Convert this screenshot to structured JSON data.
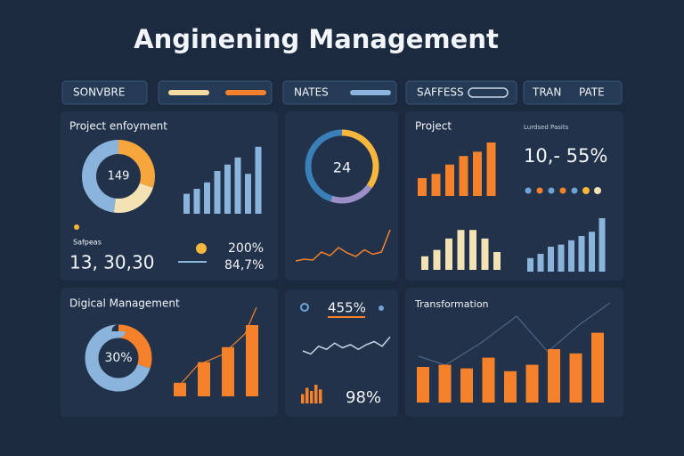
{
  "title": "Anginening Management",
  "toolbar": [
    "SONVBRE",
    "NATES",
    "SAFFESS",
    "TRAN",
    "PATE"
  ],
  "panels": {
    "enjoyment": {
      "title": "Project enfoyment",
      "donut_label": "149",
      "donut": [
        30,
        22,
        48
      ],
      "bars": [
        28,
        35,
        44,
        60,
        69,
        79,
        56,
        94
      ],
      "caption": "Safpeas",
      "stat": "13,  30,30",
      "pct_a": "200%",
      "pct_b": "84,7%"
    },
    "rate": {
      "donut_label": "24",
      "donut": [
        35,
        20,
        45
      ],
      "line": [
        10,
        14,
        12,
        30,
        22,
        40,
        28,
        20,
        35,
        25,
        30,
        80
      ]
    },
    "project": {
      "title": "Project",
      "caption": "Lurdsed Pasits",
      "stat": "10,- 55%",
      "bars": [
        25,
        31,
        44,
        56,
        62,
        75
      ],
      "bars_b": [
        19,
        28,
        44,
        56,
        56,
        44,
        25
      ],
      "bars_c": [
        19,
        25,
        35,
        38,
        44,
        50,
        56,
        75
      ]
    },
    "digital": {
      "title": "Digical Management",
      "donut_label": "30%",
      "donut": [
        30,
        70
      ],
      "bars": [
        19,
        48,
        69,
        100
      ]
    },
    "ratio": {
      "pct_a": "455%",
      "line": [
        40,
        30,
        55,
        45,
        65,
        50,
        60,
        45,
        60,
        70,
        55,
        85
      ],
      "bars": [
        30,
        50,
        40,
        60,
        45
      ],
      "pct_b": "98%"
    },
    "transformation": {
      "title": "Transformation",
      "bars": [
        50,
        53,
        48,
        63,
        44,
        53,
        75,
        69,
        98
      ]
    }
  }
}
